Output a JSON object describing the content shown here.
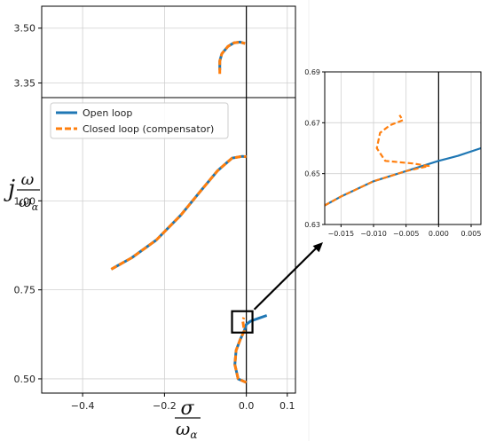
{
  "chart_data": [
    {
      "type": "line",
      "panel": "main",
      "xlabel_parts": {
        "num": "σ",
        "den_base": "ω",
        "den_sub": "α"
      },
      "ylabel_parts": {
        "prefix": "j",
        "num": "ω",
        "den_base": "ω",
        "den_sub": "α"
      },
      "xlim": [
        -0.5,
        0.12
      ],
      "x_ticks": [
        -0.4,
        -0.2,
        0.0,
        0.1
      ],
      "x_tick_labels": [
        "−0.4",
        "−0.2",
        "0.0",
        "0.1"
      ],
      "axis_break": true,
      "ylim_upper": [
        3.31,
        3.56
      ],
      "ylim_lower": [
        0.46,
        1.29
      ],
      "y_ticks_upper": [
        3.35,
        3.5
      ],
      "y_tick_labels_upper": [
        "3.35",
        "3.50"
      ],
      "y_ticks_lower": [
        0.5,
        0.75,
        1.0
      ],
      "y_tick_labels_lower": [
        "0.50",
        "0.75",
        "1.00"
      ],
      "grid": true,
      "legend": {
        "placement": "top-left",
        "entries": [
          "Open loop",
          "Closed loop (compensator)"
        ]
      },
      "colors": {
        "open": "#1f77b4",
        "closed": "#ff7f0e"
      },
      "series": [
        {
          "name": "Open loop",
          "style": "solid",
          "branches": [
            {
              "x": [
                -0.065,
                -0.065,
                -0.06,
                -0.045,
                -0.03,
                -0.015,
                -0.003
              ],
              "y": [
                3.385,
                3.41,
                3.43,
                3.45,
                3.46,
                3.462,
                3.458
              ]
            },
            {
              "x": [
                -0.33,
                -0.28,
                -0.22,
                -0.16,
                -0.11,
                -0.07,
                -0.035,
                -0.01,
                0.0
              ],
              "y": [
                0.808,
                0.84,
                0.89,
                0.96,
                1.03,
                1.085,
                1.12,
                1.125,
                1.124
              ]
            },
            {
              "x": [
                0.0,
                -0.02,
                -0.028,
                -0.025,
                -0.015,
                -0.005,
                0.0,
                0.01,
                0.03,
                0.05
              ],
              "y": [
                0.49,
                0.5,
                0.54,
                0.58,
                0.61,
                0.635,
                0.653,
                0.662,
                0.67,
                0.678
              ]
            }
          ]
        },
        {
          "name": "Closed loop (compensator)",
          "style": "dashed",
          "branches": [
            {
              "x": [
                -0.065,
                -0.065,
                -0.06,
                -0.045,
                -0.03,
                -0.015,
                -0.003
              ],
              "y": [
                3.375,
                3.41,
                3.43,
                3.45,
                3.46,
                3.462,
                3.458
              ]
            },
            {
              "x": [
                -0.33,
                -0.28,
                -0.22,
                -0.16,
                -0.11,
                -0.07,
                -0.035,
                -0.01,
                0.0
              ],
              "y": [
                0.808,
                0.84,
                0.89,
                0.96,
                1.03,
                1.085,
                1.12,
                1.125,
                1.124
              ]
            },
            {
              "x": [
                0.0,
                -0.02,
                -0.028,
                -0.025,
                -0.015,
                -0.005,
                -0.009,
                -0.006
              ],
              "y": [
                0.49,
                0.5,
                0.54,
                0.58,
                0.61,
                0.635,
                0.665,
                0.672
              ]
            }
          ]
        }
      ],
      "zoom_box": {
        "x": [
          -0.035,
          0.015
        ],
        "y": [
          0.63,
          0.69
        ]
      }
    },
    {
      "type": "line",
      "panel": "inset",
      "xlim": [
        -0.0175,
        0.0065
      ],
      "ylim": [
        0.63,
        0.69
      ],
      "x_ticks": [
        -0.015,
        -0.01,
        -0.005,
        0.0,
        0.005
      ],
      "x_tick_labels": [
        "−0.015",
        "−0.010",
        "−0.005",
        "0.000",
        "0.005"
      ],
      "y_ticks": [
        0.63,
        0.65,
        0.67,
        0.69
      ],
      "y_tick_labels": [
        "0.63",
        "0.65",
        "0.67",
        "0.69"
      ],
      "grid": true,
      "series": [
        {
          "name": "Open loop",
          "style": "solid",
          "x": [
            -0.0175,
            -0.015,
            -0.01,
            -0.005,
            0.0,
            0.003,
            0.0065
          ],
          "y": [
            0.6375,
            0.641,
            0.647,
            0.651,
            0.655,
            0.657,
            0.66
          ]
        },
        {
          "name": "Closed loop (compensator)",
          "style": "dashed",
          "x": [
            -0.0175,
            -0.015,
            -0.01,
            -0.005,
            -0.0015,
            -0.004,
            -0.0082,
            -0.0095,
            -0.009,
            -0.0075,
            -0.0055,
            -0.006
          ],
          "y": [
            0.6375,
            0.641,
            0.647,
            0.651,
            0.653,
            0.654,
            0.655,
            0.66,
            0.666,
            0.669,
            0.671,
            0.673
          ]
        }
      ]
    }
  ]
}
